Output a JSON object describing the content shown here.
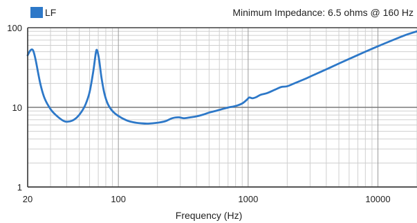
{
  "chart_data": {
    "type": "line",
    "title": "",
    "xlabel": "Frequency (Hz)",
    "ylabel": "",
    "x_scale": "log",
    "y_scale": "log",
    "xlim": [
      20,
      20000
    ],
    "ylim": [
      1,
      100
    ],
    "grid": true,
    "legend_position": "top-left",
    "annotation": "Minimum Impedance: 6.5 ohms @ 160 Hz",
    "x_ticks": [
      {
        "value": 20,
        "label": "20"
      },
      {
        "value": 100,
        "label": "100"
      },
      {
        "value": 1000,
        "label": "1000"
      },
      {
        "value": 10000,
        "label": "10000"
      }
    ],
    "y_ticks": [
      {
        "value": 1,
        "label": "1"
      },
      {
        "value": 10,
        "label": "10"
      },
      {
        "value": 100,
        "label": "100"
      }
    ],
    "series": [
      {
        "name": "LF",
        "color": "#2d78c8",
        "points": [
          [
            20,
            45
          ],
          [
            21,
            52
          ],
          [
            22,
            52
          ],
          [
            23,
            40
          ],
          [
            25,
            20
          ],
          [
            27,
            13
          ],
          [
            30,
            9.5
          ],
          [
            33,
            8
          ],
          [
            37,
            6.9
          ],
          [
            40,
            6.6
          ],
          [
            44,
            6.8
          ],
          [
            48,
            7.5
          ],
          [
            52,
            8.8
          ],
          [
            56,
            11
          ],
          [
            60,
            15.5
          ],
          [
            64,
            28
          ],
          [
            67,
            48
          ],
          [
            68.5,
            52
          ],
          [
            71,
            40
          ],
          [
            74,
            24
          ],
          [
            78,
            15
          ],
          [
            83,
            11
          ],
          [
            90,
            9
          ],
          [
            100,
            7.8
          ],
          [
            115,
            6.9
          ],
          [
            130,
            6.5
          ],
          [
            150,
            6.3
          ],
          [
            170,
            6.25
          ],
          [
            200,
            6.4
          ],
          [
            230,
            6.7
          ],
          [
            260,
            7.3
          ],
          [
            290,
            7.5
          ],
          [
            320,
            7.3
          ],
          [
            360,
            7.5
          ],
          [
            400,
            7.7
          ],
          [
            450,
            8.1
          ],
          [
            500,
            8.6
          ],
          [
            560,
            9.0
          ],
          [
            630,
            9.5
          ],
          [
            710,
            10.0
          ],
          [
            800,
            10.4
          ],
          [
            900,
            11.2
          ],
          [
            980,
            12.5
          ],
          [
            1020,
            13.3
          ],
          [
            1080,
            13.0
          ],
          [
            1150,
            13.4
          ],
          [
            1250,
            14.4
          ],
          [
            1400,
            15.1
          ],
          [
            1600,
            16.6
          ],
          [
            1800,
            18.0
          ],
          [
            2000,
            18.4
          ],
          [
            2300,
            20.2
          ],
          [
            2700,
            22.5
          ],
          [
            3200,
            25.5
          ],
          [
            4000,
            30.0
          ],
          [
            5000,
            35.5
          ],
          [
            6300,
            42.0
          ],
          [
            8000,
            50.0
          ],
          [
            10000,
            58.5
          ],
          [
            12500,
            68.0
          ],
          [
            16000,
            80.0
          ],
          [
            20000,
            90.0
          ]
        ]
      }
    ]
  }
}
